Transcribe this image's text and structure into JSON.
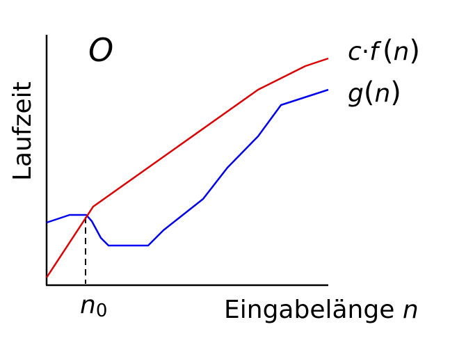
{
  "diagram": {
    "title": "O",
    "ylabel": "Laufzeit",
    "xlabel": "Eingabelänge",
    "xlabel_var": "n",
    "marker_label_base": "n",
    "marker_label_sub": "0",
    "curves": {
      "upper": {
        "label_c": "c",
        "label_dot": "·",
        "label_f": "f",
        "label_open": "(",
        "label_var": "n",
        "label_close": ")",
        "color": "#dd0000"
      },
      "lower": {
        "label_g": "g",
        "label_open": "(",
        "label_var": "n",
        "label_close": ")",
        "color": "#0000ee"
      }
    },
    "axis_color": "#000000"
  }
}
